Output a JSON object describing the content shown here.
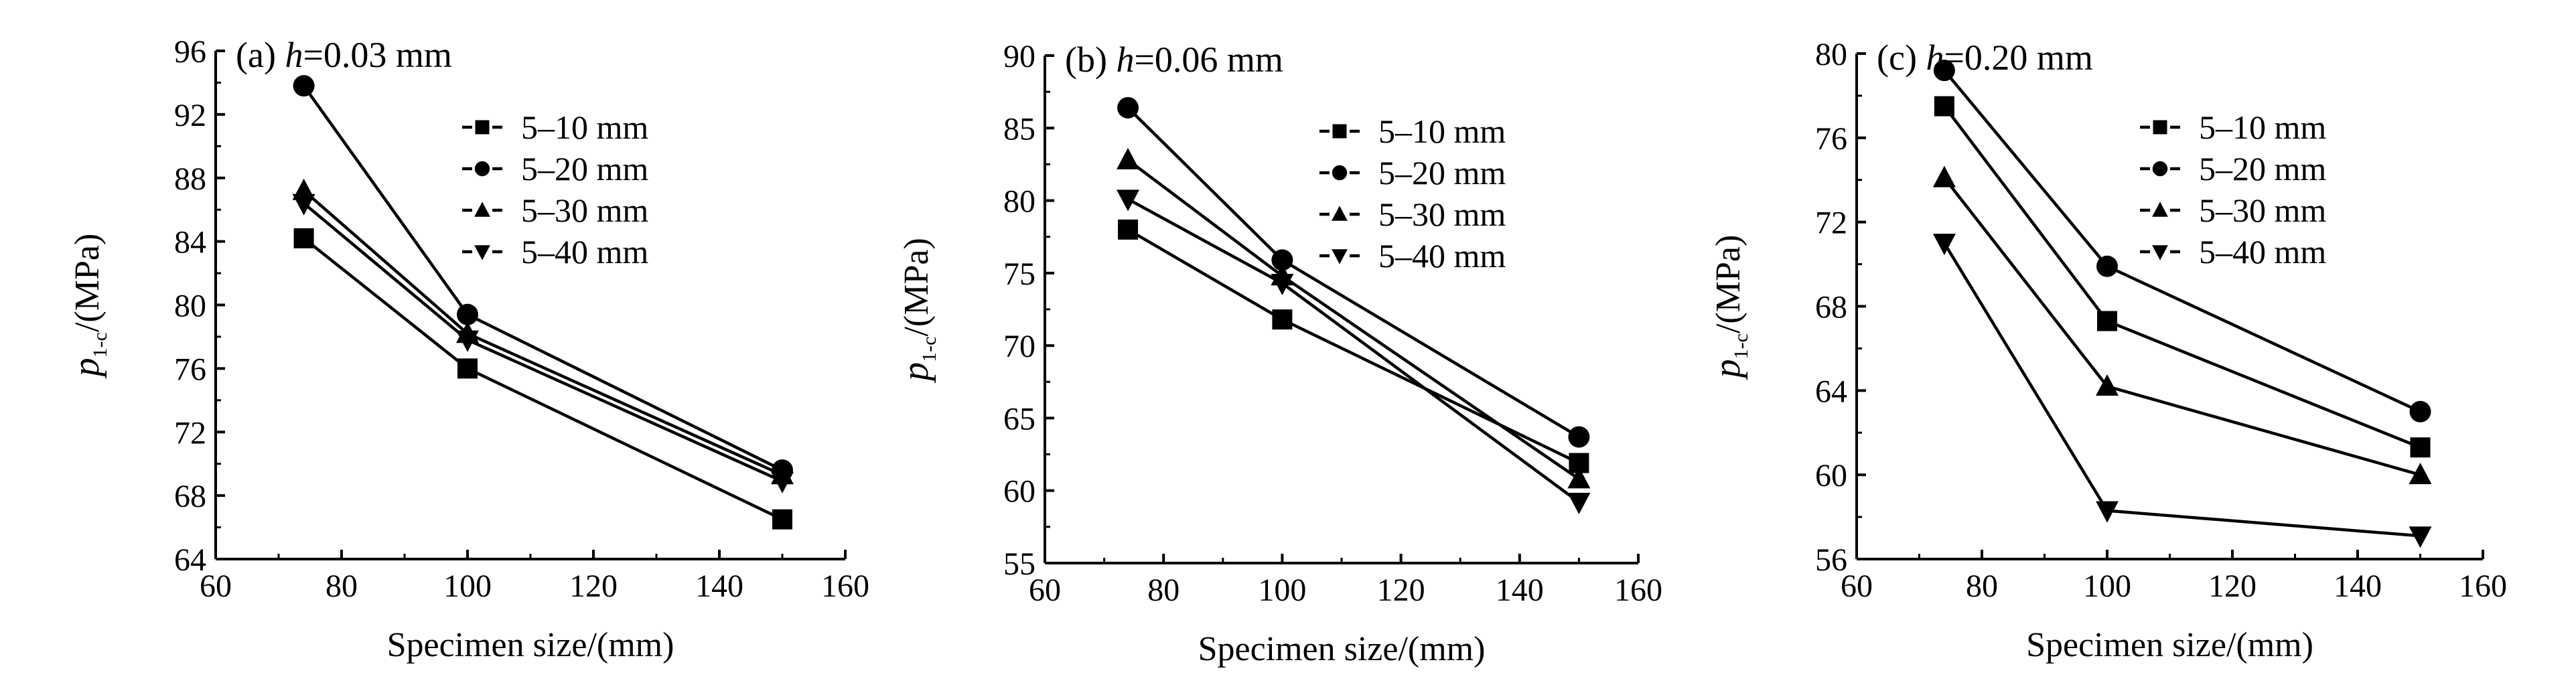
{
  "chart_data": [
    {
      "type": "line",
      "title_prefix": "(a) ",
      "title_var": "h",
      "title_rest": "=0.03 mm",
      "xlabel": "Specimen size/(mm)",
      "ylabel_main": "p",
      "ylabel_sub": "1-c",
      "ylabel_unit": "/(MPa)",
      "xlim": [
        60,
        160
      ],
      "ylim": [
        64,
        96
      ],
      "xticks": [
        60,
        80,
        100,
        120,
        140,
        160
      ],
      "yticks": [
        64,
        68,
        72,
        76,
        80,
        84,
        88,
        92,
        96
      ],
      "x": [
        74,
        100,
        150
      ],
      "legend_position": "top-right",
      "series": [
        {
          "name": "5–10 mm",
          "marker": "square",
          "values": [
            84.2,
            76.0,
            66.5
          ]
        },
        {
          "name": "5–20 mm",
          "marker": "circle",
          "values": [
            93.8,
            79.4,
            69.6
          ]
        },
        {
          "name": "5–30 mm",
          "marker": "triangle-up",
          "values": [
            87.2,
            78.2,
            69.3
          ]
        },
        {
          "name": "5–40 mm",
          "marker": "triangle-down",
          "values": [
            86.4,
            77.8,
            68.9
          ]
        }
      ]
    },
    {
      "type": "line",
      "title_prefix": "(b) ",
      "title_var": "h",
      "title_rest": "=0.06 mm",
      "xlabel": "Specimen size/(mm)",
      "ylabel_main": "p",
      "ylabel_sub": "1-c",
      "ylabel_unit": "/(MPa)",
      "xlim": [
        60,
        160
      ],
      "ylim": [
        55,
        90
      ],
      "xticks": [
        60,
        80,
        100,
        120,
        140,
        160
      ],
      "yticks": [
        55,
        60,
        65,
        70,
        75,
        80,
        85,
        90
      ],
      "x": [
        74,
        100,
        150
      ],
      "legend_position": "top-right",
      "series": [
        {
          "name": "5–10 mm",
          "marker": "square",
          "values": [
            78.0,
            71.8,
            61.9
          ]
        },
        {
          "name": "5–20 mm",
          "marker": "circle",
          "values": [
            86.4,
            75.9,
            63.7
          ]
        },
        {
          "name": "5–30 mm",
          "marker": "triangle-up",
          "values": [
            82.8,
            74.8,
            60.8
          ]
        },
        {
          "name": "5–40 mm",
          "marker": "triangle-down",
          "values": [
            80.1,
            74.3,
            59.2
          ]
        }
      ]
    },
    {
      "type": "line",
      "title_prefix": "(c) ",
      "title_var": "h",
      "title_rest": "=0.20 mm",
      "xlabel": "Specimen size/(mm)",
      "ylabel_main": "p",
      "ylabel_sub": "1-c",
      "ylabel_unit": "/(MPa)",
      "xlim": [
        60,
        160
      ],
      "ylim": [
        56,
        80
      ],
      "xticks": [
        60,
        80,
        100,
        120,
        140,
        160
      ],
      "yticks": [
        56,
        60,
        64,
        68,
        72,
        76,
        80
      ],
      "x": [
        74,
        100,
        150
      ],
      "legend_position": "top-right",
      "series": [
        {
          "name": "5–10 mm",
          "marker": "square",
          "values": [
            77.5,
            67.3,
            61.3
          ]
        },
        {
          "name": "5–20 mm",
          "marker": "circle",
          "values": [
            79.2,
            69.9,
            63.0
          ]
        },
        {
          "name": "5–30 mm",
          "marker": "triangle-up",
          "values": [
            74.1,
            64.2,
            60.0
          ]
        },
        {
          "name": "5–40 mm",
          "marker": "triangle-down",
          "values": [
            71.0,
            58.3,
            57.1
          ]
        }
      ]
    }
  ]
}
